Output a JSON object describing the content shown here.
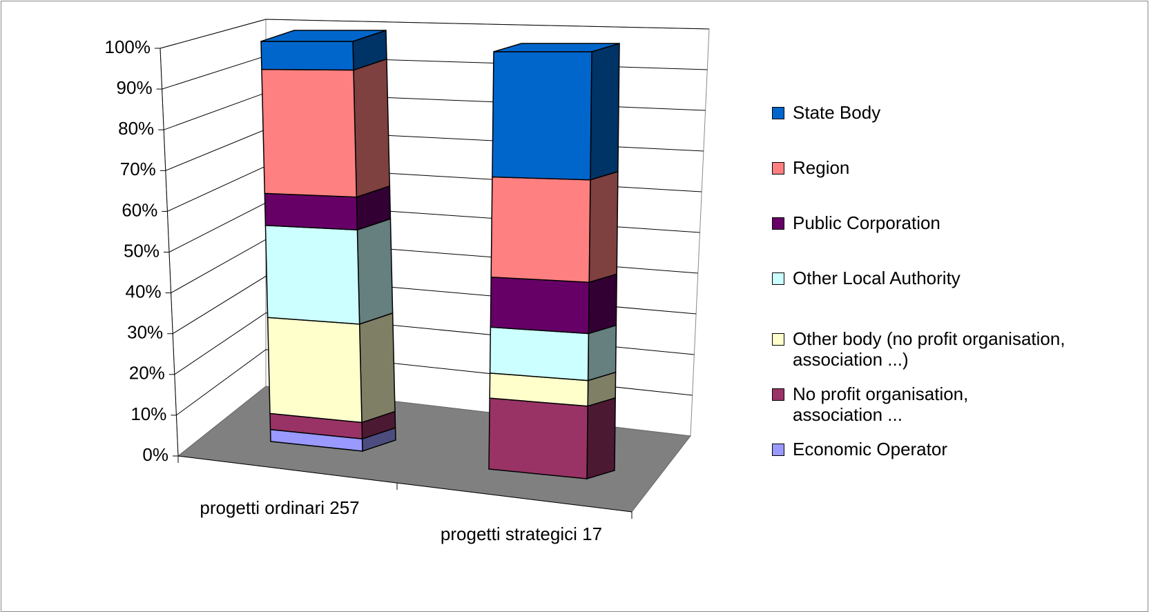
{
  "chart_data": {
    "type": "bar3d_stacked_percent",
    "categories": [
      "progetti ordinari 257",
      "progetti strategici 17"
    ],
    "series": [
      {
        "name": "Economic Operator",
        "color": "#9999ff",
        "values": [
          3,
          0
        ]
      },
      {
        "name": "No profit organisation, association ...",
        "color": "#993366",
        "values": [
          4,
          17
        ]
      },
      {
        "name": "Other body (no profit organisation, association ...)",
        "color": "#ffffcc",
        "values": [
          24,
          6
        ]
      },
      {
        "name": "Other Local Authority",
        "color": "#ccffff",
        "values": [
          23,
          11
        ]
      },
      {
        "name": "Public Corporation",
        "color": "#660066",
        "values": [
          8,
          12
        ]
      },
      {
        "name": "Region",
        "color": "#ff8080",
        "values": [
          31,
          24
        ]
      },
      {
        "name": "State Body",
        "color": "#0066cc",
        "values": [
          7,
          30
        ]
      }
    ],
    "ylim": [
      0,
      100
    ],
    "yticks": [
      {
        "value": 0,
        "label": "0%"
      },
      {
        "value": 10,
        "label": "10%"
      },
      {
        "value": 20,
        "label": "20%"
      },
      {
        "value": 30,
        "label": "30%"
      },
      {
        "value": 40,
        "label": "40%"
      },
      {
        "value": 50,
        "label": "50%"
      },
      {
        "value": 60,
        "label": "60%"
      },
      {
        "value": 70,
        "label": "70%"
      },
      {
        "value": 80,
        "label": "80%"
      },
      {
        "value": 90,
        "label": "90%"
      },
      {
        "value": 100,
        "label": "100%"
      }
    ],
    "grid": true
  }
}
